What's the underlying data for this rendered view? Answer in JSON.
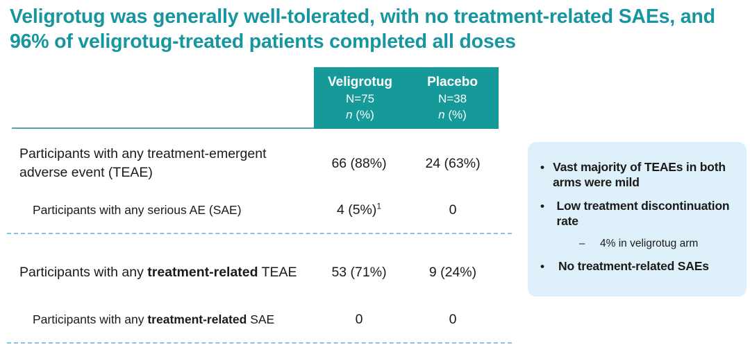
{
  "title": "Veligrotug was generally well-tolerated, with no treatment-related SAEs, and 96% of veligrotug-treated patients completed all doses",
  "colors": {
    "title_teal": "#1796A0",
    "header_bg": "#169999",
    "callout_bg": "#DEF0F9",
    "divider_blue": "#8FC0DA",
    "body_text": "#1A1A1A"
  },
  "table": {
    "columns": [
      {
        "name": "Veligrotug",
        "n": "N=75",
        "unit_n": "n",
        "unit_pct": " (%)"
      },
      {
        "name": "Placebo",
        "n": "N=38",
        "unit_n": "n",
        "unit_pct": " (%)"
      }
    ],
    "rows": [
      {
        "label_prefix": "Participants with any treatment-emergent adverse event (TEAE)",
        "label_bold": "",
        "label_suffix": "",
        "veligrotug": "66 (88%)",
        "veligrotug_sup": "",
        "placebo": "24 (63%)"
      },
      {
        "label_prefix": "Participants with any serious AE (SAE)",
        "label_bold": "",
        "label_suffix": "",
        "veligrotug": "4 (5%)",
        "veligrotug_sup": "1",
        "placebo": "0"
      },
      {
        "label_prefix": "Participants with any ",
        "label_bold": "treatment-related",
        "label_suffix": " TEAE",
        "veligrotug": "53 (71%)",
        "veligrotug_sup": "",
        "placebo": "9 (24%)"
      },
      {
        "label_prefix": "Participants with any ",
        "label_bold": "treatment-related",
        "label_suffix": " SAE",
        "veligrotug": "0",
        "veligrotug_sup": "",
        "placebo": "0"
      }
    ]
  },
  "callout": {
    "bullet_glyph": "•",
    "dash_glyph": "–",
    "bullets": [
      {
        "text": "Vast majority of TEAEs in both arms were mild"
      },
      {
        "text": "Low treatment discontinuation rate"
      },
      {
        "text": "No treatment-related SAEs"
      }
    ],
    "sub_bullet": "4% in veligrotug arm"
  }
}
